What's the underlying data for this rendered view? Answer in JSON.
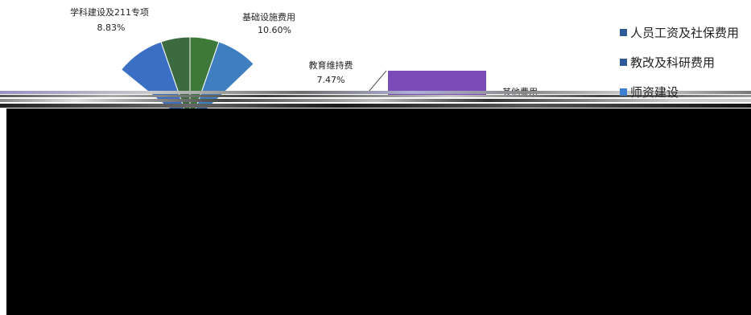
{
  "chart_data": {
    "type": "pie",
    "slices": [
      {
        "label": "学科建设及211专项",
        "value_label": "8.83%",
        "value": 8.83,
        "color": "#3a6fc4"
      },
      {
        "label": "基础设施费用",
        "value_label": "10.60%",
        "value": 10.6,
        "color": "#3d7a3a"
      },
      {
        "label": "教育维持费",
        "value_label": "7.47%",
        "value": 7.47,
        "color": "#3f7ebf"
      },
      {
        "label": "其他费用",
        "value_label": "",
        "value": null,
        "color": "#7b4bb8"
      }
    ],
    "legend": {
      "position": "right",
      "items": [
        {
          "label": "人员工资及社保费用",
          "color": "#2e5a9a"
        },
        {
          "label": "教改及科研费用",
          "color": "#2e5a9a"
        },
        {
          "label": "师资建设",
          "color": "#3a7fd0"
        }
      ]
    }
  }
}
